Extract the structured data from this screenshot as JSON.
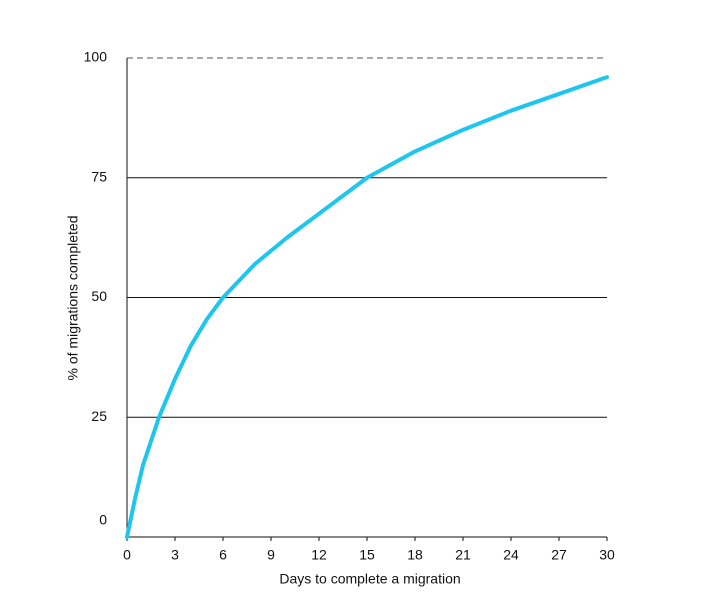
{
  "chart_data": {
    "type": "line",
    "x_label": "Days to complete a migration",
    "y_label": "% of migrations completed",
    "x": [
      0,
      0.5,
      1,
      2,
      3,
      4,
      5,
      6,
      8,
      10,
      12,
      15,
      18,
      21,
      24,
      27,
      30
    ],
    "values": [
      0,
      8,
      15,
      25,
      33,
      40,
      45.5,
      50,
      57,
      62.5,
      67.5,
      75,
      80.5,
      85,
      89,
      92.5,
      96
    ],
    "color": "#1ec6ef",
    "xlim": [
      0,
      30
    ],
    "xticks": [
      0,
      3,
      6,
      9,
      12,
      15,
      18,
      21,
      24,
      27,
      30
    ],
    "ylim": [
      0,
      100
    ],
    "yticks": [
      0,
      25,
      50,
      75,
      100
    ],
    "grid": true
  }
}
